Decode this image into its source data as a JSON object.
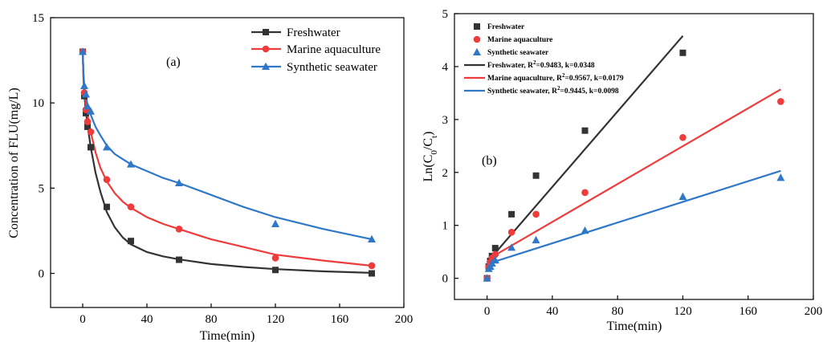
{
  "colors": {
    "freshwater": "#333333",
    "marine": "#ee3b3b",
    "synthetic": "#2f78c8",
    "axis": "#000000"
  },
  "chart_data": [
    {
      "type": "scatter",
      "panel_label": "(a)",
      "title": "",
      "xlabel": "Time(min)",
      "ylabel": "Concentration of FLU(mg/L)",
      "xlim": [
        -20,
        200
      ],
      "ylim": [
        -2,
        15
      ],
      "xticks": [
        0,
        40,
        80,
        120,
        160,
        200
      ],
      "yticks": [
        0,
        5,
        10,
        15
      ],
      "legend_position": "top-right",
      "grid": false,
      "series": [
        {
          "name": "Freshwater",
          "color_key": "freshwater",
          "marker": "square",
          "x": [
            0,
            1,
            2,
            3,
            5,
            15,
            30,
            60,
            120,
            180
          ],
          "y": [
            13.0,
            10.4,
            9.4,
            8.6,
            7.4,
            3.9,
            1.9,
            0.8,
            0.2,
            0.0
          ],
          "fit": {
            "x": [
              0,
              0.5,
              1,
              2,
              3,
              5,
              8,
              11,
              15,
              20,
              25,
              30,
              40,
              50,
              60,
              80,
              100,
              120,
              150,
              180
            ],
            "y": [
              13.0,
              11.4,
              10.5,
              9.5,
              8.7,
              7.4,
              5.9,
              4.8,
              3.6,
              2.7,
              2.1,
              1.7,
              1.25,
              1.0,
              0.82,
              0.55,
              0.38,
              0.25,
              0.12,
              0.03
            ]
          }
        },
        {
          "name": "Marine aquaculture",
          "color_key": "marine",
          "marker": "circle",
          "x": [
            0,
            1,
            2,
            3,
            5,
            15,
            30,
            60,
            120,
            180
          ],
          "y": [
            13.0,
            10.6,
            9.6,
            8.9,
            8.3,
            5.5,
            3.9,
            2.6,
            0.9,
            0.45
          ],
          "fit": {
            "x": [
              0,
              0.5,
              1,
              2,
              3,
              5,
              8,
              11,
              15,
              20,
              25,
              30,
              40,
              50,
              60,
              80,
              100,
              120,
              150,
              180
            ],
            "y": [
              13.0,
              11.6,
              10.8,
              9.9,
              9.3,
              8.3,
              7.1,
              6.2,
              5.4,
              4.7,
              4.2,
              3.85,
              3.3,
              2.9,
              2.6,
              2.0,
              1.55,
              1.1,
              0.75,
              0.45
            ]
          }
        },
        {
          "name": "Synthetic seawater",
          "color_key": "synthetic",
          "marker": "triangle",
          "x": [
            0,
            1,
            2,
            3,
            5,
            15,
            30,
            60,
            120,
            180
          ],
          "y": [
            13.0,
            11.0,
            10.5,
            9.8,
            9.5,
            7.4,
            6.4,
            5.3,
            2.9,
            2.0
          ],
          "fit": {
            "x": [
              0,
              0.5,
              1,
              2,
              3,
              5,
              8,
              11,
              15,
              20,
              25,
              30,
              40,
              50,
              60,
              80,
              100,
              120,
              150,
              180
            ],
            "y": [
              13.0,
              11.7,
              11.0,
              10.4,
              9.9,
              9.3,
              8.6,
              8.1,
              7.5,
              7.0,
              6.7,
              6.4,
              6.0,
              5.6,
              5.3,
              4.6,
              3.9,
              3.3,
              2.6,
              2.0
            ]
          }
        }
      ]
    },
    {
      "type": "scatter",
      "panel_label": "(b)",
      "title": "",
      "xlabel": "Time(min)",
      "ylabel": "Ln(C0/Ct)",
      "xlim": [
        -20,
        200
      ],
      "ylim": [
        -0.4,
        5
      ],
      "xticks": [
        0,
        40,
        80,
        120,
        160,
        200
      ],
      "yticks": [
        0,
        1,
        2,
        3,
        4,
        5
      ],
      "legend_position": "top-left",
      "grid": false,
      "series": [
        {
          "name": "Freshwater",
          "color_key": "freshwater",
          "marker": "square",
          "x": [
            0,
            1,
            2,
            3,
            5,
            15,
            30,
            60,
            120
          ],
          "y": [
            0.0,
            0.22,
            0.33,
            0.42,
            0.57,
            1.21,
            1.94,
            2.79,
            4.26
          ]
        },
        {
          "name": "Marine aquaculture",
          "color_key": "marine",
          "marker": "circle",
          "x": [
            0,
            1,
            2,
            3,
            5,
            15,
            30,
            60,
            120,
            180
          ],
          "y": [
            0.0,
            0.21,
            0.3,
            0.38,
            0.45,
            0.87,
            1.21,
            1.62,
            2.66,
            3.34
          ]
        },
        {
          "name": "Synthetic seawater",
          "color_key": "synthetic",
          "marker": "triangle",
          "x": [
            0,
            1,
            2,
            3,
            5,
            15,
            30,
            60,
            120,
            180
          ],
          "y": [
            0.0,
            0.18,
            0.22,
            0.28,
            0.34,
            0.58,
            0.72,
            0.9,
            1.54,
            1.9
          ]
        }
      ],
      "fits": [
        {
          "label": "Freshwater, R²=0.9483, k=0.0348",
          "color_key": "freshwater",
          "x": [
            0,
            120
          ],
          "y": [
            0.3,
            4.58
          ]
        },
        {
          "label": "Marine aquaculture, R²=0.9567, k=0.0179",
          "color_key": "marine",
          "x": [
            0,
            180
          ],
          "y": [
            0.35,
            3.57
          ]
        },
        {
          "label": "Synthetic seawater, R²=0.9445, k=0.0098",
          "color_key": "synthetic",
          "x": [
            0,
            180
          ],
          "y": [
            0.27,
            2.03
          ]
        }
      ]
    }
  ]
}
